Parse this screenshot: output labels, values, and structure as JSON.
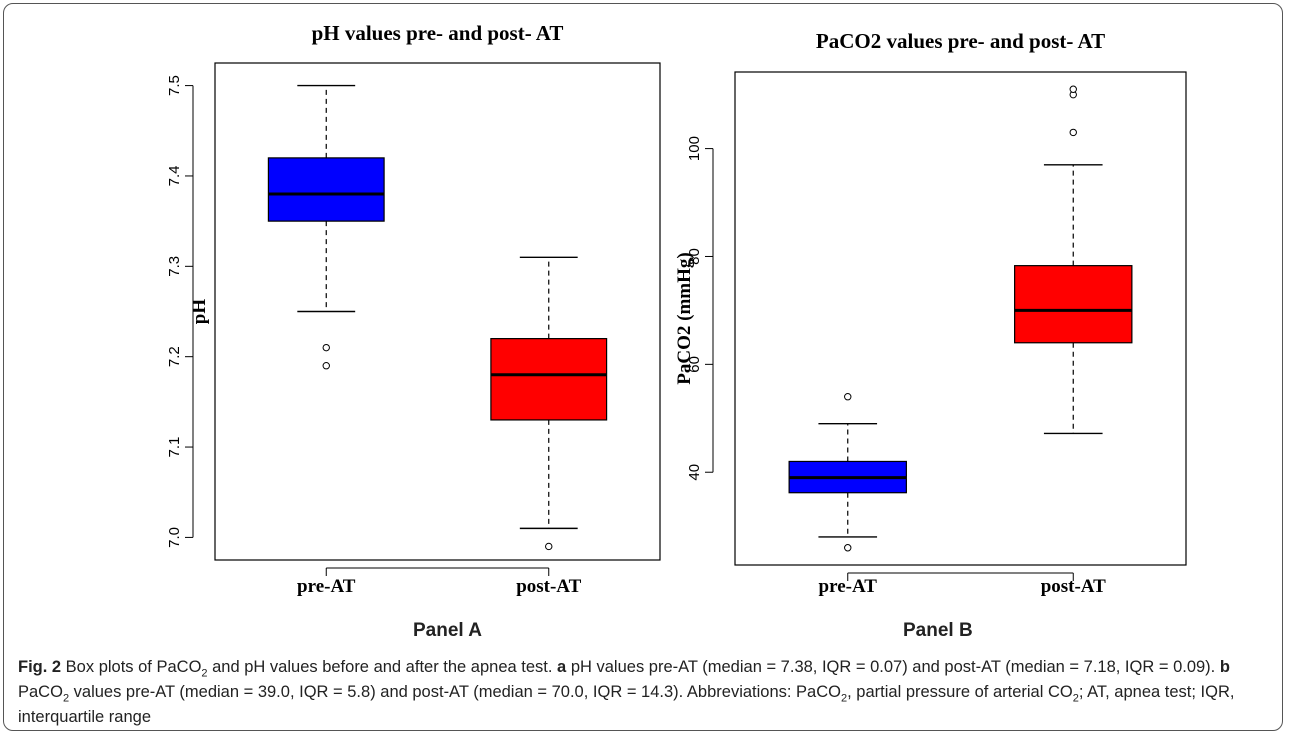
{
  "figure": {
    "panel_a_label": "Panel A",
    "panel_b_label": "Panel B",
    "caption": {
      "fig_label": "Fig. 2",
      "pre_text": " Box plots of PaCO",
      "sub1": "2",
      "mid1": " and pH values before and after the apnea test. ",
      "a_label": "a",
      "a_text": " pH values pre-AT (median = 7.38, IQR = 0.07) and post-AT (median = 7.18, IQR = 0.09). ",
      "b_label": "b",
      "b_pre": " PaCO",
      "sub2": "2",
      "b_text": " values pre-AT (median = 39.0, IQR = 5.8) and post-AT (median = 70.0, IQR = 14.3). Abbreviations: PaCO",
      "sub3": "2",
      "abbr_text": ", partial pressure of arterial CO",
      "sub4": "2",
      "tail_text": "; AT, apnea test; IQR, interquartile range"
    }
  },
  "colors": {
    "pre": "#0000ff",
    "post": "#ff0000"
  },
  "chart_data": [
    {
      "type": "box",
      "title": "pH values pre- and post- AT",
      "xlabel": "",
      "ylabel": "pH",
      "ylim": [
        6.975,
        7.525
      ],
      "yticks": [
        7.0,
        7.1,
        7.2,
        7.3,
        7.4,
        7.5
      ],
      "ytick_labels": [
        "7.0",
        "7.1",
        "7.2",
        "7.3",
        "7.4",
        "7.5"
      ],
      "categories": [
        "pre-AT",
        "post-AT"
      ],
      "boxes": [
        {
          "name": "pre-AT",
          "whisker_low": 7.25,
          "q1": 7.35,
          "median": 7.38,
          "q3": 7.42,
          "whisker_high": 7.5,
          "outliers": [
            7.21,
            7.19
          ],
          "color": "#0000ff"
        },
        {
          "name": "post-AT",
          "whisker_low": 7.01,
          "q1": 7.13,
          "median": 7.18,
          "q3": 7.22,
          "whisker_high": 7.31,
          "outliers": [
            6.99
          ],
          "color": "#ff0000"
        }
      ]
    },
    {
      "type": "box",
      "title": "PaCO2 values pre- and post- AT",
      "xlabel": "",
      "ylabel": "PaCO2 (mmHg)",
      "ylim": [
        22.8,
        114.2
      ],
      "yticks": [
        40,
        60,
        80,
        100
      ],
      "ytick_labels": [
        "40",
        "60",
        "80",
        "100"
      ],
      "categories": [
        "pre-AT",
        "post-AT"
      ],
      "boxes": [
        {
          "name": "pre-AT",
          "whisker_low": 28,
          "q1": 36.2,
          "median": 39,
          "q3": 42,
          "whisker_high": 49,
          "outliers": [
            54,
            26
          ],
          "color": "#0000ff"
        },
        {
          "name": "post-AT",
          "whisker_low": 47.2,
          "q1": 64,
          "median": 70,
          "q3": 78.3,
          "whisker_high": 97,
          "outliers": [
            103,
            110,
            111
          ],
          "color": "#ff0000"
        }
      ]
    }
  ]
}
